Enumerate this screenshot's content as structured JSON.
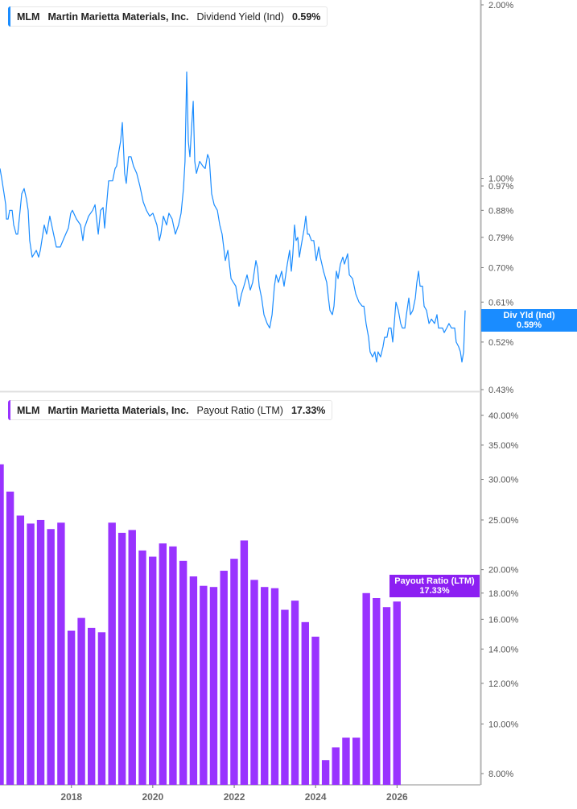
{
  "colors": {
    "yield": "#1a8cff",
    "payout": "#9933ff",
    "payout_badge": "#8c1ff2",
    "axis": "#b3b3b3",
    "tick_text": "#555555"
  },
  "top_legend": {
    "ticker": "MLM",
    "company": "Martin Marietta Materials, Inc.",
    "metric": "Dividend Yield (Ind)",
    "value": "0.59%"
  },
  "top_badge": {
    "label": "Div Yld (Ind)",
    "value": "0.59%"
  },
  "bottom_legend": {
    "ticker": "MLM",
    "company": "Martin Marietta Materials, Inc.",
    "metric": "Payout Ratio (LTM)",
    "value": "17.33%"
  },
  "bottom_badge": {
    "label": "Payout Ratio (LTM)",
    "value": "17.33%"
  },
  "chart_data": [
    {
      "type": "line",
      "series_name": "Dividend Yield (Ind)",
      "y_scale": "log",
      "ylim": [
        0.43,
        2.0
      ],
      "y_unit": "%",
      "y_ticks": [
        "2.00%",
        "1.00%",
        "0.97%",
        "0.88%",
        "0.79%",
        "0.70%",
        "0.61%",
        "0.52%",
        "0.43%"
      ],
      "y_tick_values": [
        2.0,
        1.0,
        0.97,
        0.88,
        0.79,
        0.7,
        0.61,
        0.52,
        0.43
      ],
      "points": [
        [
          "2016-04-02",
          1.04
        ],
        [
          "2016-04-15",
          1.0
        ],
        [
          "2016-05-04",
          0.94
        ],
        [
          "2016-05-16",
          0.9
        ],
        [
          "2016-05-22",
          0.85
        ],
        [
          "2016-06-04",
          0.85
        ],
        [
          "2016-06-16",
          0.88
        ],
        [
          "2016-07-05",
          0.88
        ],
        [
          "2016-07-17",
          0.83
        ],
        [
          "2016-08-05",
          0.8
        ],
        [
          "2016-08-17",
          0.8
        ],
        [
          "2016-09-05",
          0.88
        ],
        [
          "2016-09-17",
          0.94
        ],
        [
          "2016-10-06",
          0.96
        ],
        [
          "2016-10-24",
          0.92
        ],
        [
          "2016-11-06",
          0.88
        ],
        [
          "2016-11-18",
          0.78
        ],
        [
          "2016-12-07",
          0.73
        ],
        [
          "2017-01-08",
          0.75
        ],
        [
          "2017-01-26",
          0.73
        ],
        [
          "2017-02-08",
          0.75
        ],
        [
          "2017-03-11",
          0.83
        ],
        [
          "2017-03-29",
          0.8
        ],
        [
          "2017-04-23",
          0.86
        ],
        [
          "2017-05-12",
          0.82
        ],
        [
          "2017-06-12",
          0.76
        ],
        [
          "2017-07-13",
          0.76
        ],
        [
          "2017-08-13",
          0.79
        ],
        [
          "2017-09-14",
          0.82
        ],
        [
          "2017-10-02",
          0.87
        ],
        [
          "2017-10-15",
          0.88
        ],
        [
          "2017-11-15",
          0.85
        ],
        [
          "2017-12-17",
          0.83
        ],
        [
          "2018-01-04",
          0.78
        ],
        [
          "2018-01-16",
          0.82
        ],
        [
          "2018-02-17",
          0.86
        ],
        [
          "2018-03-20",
          0.88
        ],
        [
          "2018-04-08",
          0.9
        ],
        [
          "2018-05-03",
          0.8
        ],
        [
          "2018-05-21",
          0.88
        ],
        [
          "2018-06-09",
          0.89
        ],
        [
          "2018-06-21",
          0.82
        ],
        [
          "2018-07-22",
          0.99
        ],
        [
          "2018-08-22",
          0.99
        ],
        [
          "2018-09-10",
          1.04
        ],
        [
          "2018-09-22",
          1.05
        ],
        [
          "2018-10-11",
          1.12
        ],
        [
          "2018-10-23",
          1.16
        ],
        [
          "2018-11-05",
          1.25
        ],
        [
          "2018-11-23",
          1.02
        ],
        [
          "2018-12-06",
          0.98
        ],
        [
          "2018-12-24",
          1.09
        ],
        [
          "2019-01-12",
          1.09
        ],
        [
          "2019-01-31",
          1.05
        ],
        [
          "2019-02-25",
          1.02
        ],
        [
          "2019-03-21",
          0.97
        ],
        [
          "2019-04-16",
          0.91
        ],
        [
          "2019-05-11",
          0.88
        ],
        [
          "2019-06-05",
          0.86
        ],
        [
          "2019-06-30",
          0.87
        ],
        [
          "2019-07-31",
          0.83
        ],
        [
          "2019-08-19",
          0.78
        ],
        [
          "2019-08-31",
          0.8
        ],
        [
          "2019-09-19",
          0.86
        ],
        [
          "2019-10-14",
          0.83
        ],
        [
          "2019-11-01",
          0.87
        ],
        [
          "2019-11-26",
          0.85
        ],
        [
          "2019-12-21",
          0.8
        ],
        [
          "2020-01-15",
          0.83
        ],
        [
          "2020-02-03",
          0.87
        ],
        [
          "2020-02-22",
          0.96
        ],
        [
          "2020-03-05",
          1.07
        ],
        [
          "2020-03-18",
          1.53
        ],
        [
          "2020-03-30",
          1.16
        ],
        [
          "2020-04-12",
          1.09
        ],
        [
          "2020-04-24",
          1.22
        ],
        [
          "2020-05-07",
          1.36
        ],
        [
          "2020-05-19",
          1.07
        ],
        [
          "2020-06-01",
          1.02
        ],
        [
          "2020-06-26",
          1.07
        ],
        [
          "2020-07-21",
          1.05
        ],
        [
          "2020-08-08",
          1.04
        ],
        [
          "2020-08-27",
          1.1
        ],
        [
          "2020-09-09",
          1.08
        ],
        [
          "2020-09-27",
          0.94
        ],
        [
          "2020-10-16",
          0.9
        ],
        [
          "2020-11-10",
          0.88
        ],
        [
          "2020-11-29",
          0.83
        ],
        [
          "2020-12-17",
          0.8
        ],
        [
          "2021-01-11",
          0.72
        ],
        [
          "2021-01-30",
          0.75
        ],
        [
          "2021-02-24",
          0.67
        ],
        [
          "2021-03-14",
          0.66
        ],
        [
          "2021-04-02",
          0.65
        ],
        [
          "2021-04-27",
          0.6
        ],
        [
          "2021-05-16",
          0.63
        ],
        [
          "2021-06-04",
          0.65
        ],
        [
          "2021-06-28",
          0.68
        ],
        [
          "2021-07-23",
          0.64
        ],
        [
          "2021-08-11",
          0.66
        ],
        [
          "2021-09-05",
          0.72
        ],
        [
          "2021-09-17",
          0.7
        ],
        [
          "2021-09-30",
          0.65
        ],
        [
          "2021-10-19",
          0.62
        ],
        [
          "2021-11-06",
          0.58
        ],
        [
          "2021-12-01",
          0.56
        ],
        [
          "2021-12-20",
          0.55
        ],
        [
          "2022-01-08",
          0.58
        ],
        [
          "2022-01-26",
          0.65
        ],
        [
          "2022-02-08",
          0.68
        ],
        [
          "2022-02-26",
          0.66
        ],
        [
          "2022-03-23",
          0.69
        ],
        [
          "2022-04-11",
          0.65
        ],
        [
          "2022-05-06",
          0.71
        ],
        [
          "2022-05-24",
          0.75
        ],
        [
          "2022-06-06",
          0.69
        ],
        [
          "2022-06-18",
          0.74
        ],
        [
          "2022-07-01",
          0.83
        ],
        [
          "2022-07-13",
          0.78
        ],
        [
          "2022-07-26",
          0.79
        ],
        [
          "2022-08-07",
          0.73
        ],
        [
          "2022-08-20",
          0.76
        ],
        [
          "2022-09-14",
          0.82
        ],
        [
          "2022-09-26",
          0.86
        ],
        [
          "2022-10-09",
          0.8
        ],
        [
          "2022-10-21",
          0.8
        ],
        [
          "2022-11-09",
          0.78
        ],
        [
          "2022-11-27",
          0.78
        ],
        [
          "2022-12-16",
          0.72
        ],
        [
          "2023-01-04",
          0.76
        ],
        [
          "2023-01-16",
          0.73
        ],
        [
          "2023-02-10",
          0.69
        ],
        [
          "2023-03-07",
          0.66
        ],
        [
          "2023-03-20",
          0.62
        ],
        [
          "2023-04-01",
          0.59
        ],
        [
          "2023-04-20",
          0.58
        ],
        [
          "2023-05-02",
          0.6
        ],
        [
          "2023-05-21",
          0.69
        ],
        [
          "2023-06-03",
          0.67
        ],
        [
          "2023-06-21",
          0.71
        ],
        [
          "2023-07-10",
          0.73
        ],
        [
          "2023-07-22",
          0.71
        ],
        [
          "2023-08-16",
          0.74
        ],
        [
          "2023-08-29",
          0.68
        ],
        [
          "2023-09-23",
          0.67
        ],
        [
          "2023-10-18",
          0.63
        ],
        [
          "2023-11-12",
          0.61
        ],
        [
          "2023-12-07",
          0.6
        ],
        [
          "2023-12-20",
          0.6
        ],
        [
          "2024-01-06",
          0.56
        ],
        [
          "2024-01-25",
          0.53
        ],
        [
          "2024-02-06",
          0.5
        ],
        [
          "2024-02-25",
          0.49
        ],
        [
          "2024-03-14",
          0.5
        ],
        [
          "2024-03-27",
          0.48
        ],
        [
          "2024-04-08",
          0.5
        ],
        [
          "2024-04-27",
          0.49
        ],
        [
          "2024-05-16",
          0.51
        ],
        [
          "2024-05-28",
          0.53
        ],
        [
          "2024-06-16",
          0.53
        ],
        [
          "2024-06-29",
          0.55
        ],
        [
          "2024-07-17",
          0.55
        ],
        [
          "2024-07-30",
          0.52
        ],
        [
          "2024-08-11",
          0.56
        ],
        [
          "2024-08-24",
          0.61
        ],
        [
          "2024-09-12",
          0.59
        ],
        [
          "2024-09-30",
          0.56
        ],
        [
          "2024-10-13",
          0.55
        ],
        [
          "2024-11-01",
          0.55
        ],
        [
          "2024-11-13",
          0.58
        ],
        [
          "2024-12-02",
          0.62
        ],
        [
          "2024-12-14",
          0.58
        ],
        [
          "2025-01-02",
          0.59
        ],
        [
          "2025-01-21",
          0.62
        ],
        [
          "2025-02-02",
          0.66
        ],
        [
          "2025-02-15",
          0.69
        ],
        [
          "2025-02-27",
          0.65
        ],
        [
          "2025-03-18",
          0.65
        ],
        [
          "2025-03-30",
          0.6
        ],
        [
          "2025-04-18",
          0.59
        ],
        [
          "2025-05-07",
          0.56
        ],
        [
          "2025-05-26",
          0.57
        ],
        [
          "2025-06-19",
          0.56
        ],
        [
          "2025-07-08",
          0.58
        ],
        [
          "2025-07-20",
          0.55
        ],
        [
          "2025-08-08",
          0.55
        ],
        [
          "2025-08-20",
          0.55
        ],
        [
          "2025-09-02",
          0.54
        ],
        [
          "2025-09-21",
          0.55
        ],
        [
          "2025-10-09",
          0.56
        ],
        [
          "2025-10-28",
          0.55
        ],
        [
          "2025-11-22",
          0.55
        ],
        [
          "2025-12-04",
          0.52
        ],
        [
          "2025-12-23",
          0.51
        ],
        [
          "2026-01-05",
          0.5
        ],
        [
          "2026-01-17",
          0.48
        ],
        [
          "2026-01-30",
          0.5
        ],
        [
          "2026-02-11",
          0.59
        ]
      ]
    },
    {
      "type": "bar",
      "series_name": "Payout Ratio (LTM)",
      "y_scale": "log",
      "ylim": [
        8.0,
        40.0
      ],
      "y_unit": "%",
      "y_ticks": [
        "40.00%",
        "35.00%",
        "30.00%",
        "25.00%",
        "20.00%",
        "18.00%",
        "16.00%",
        "14.00%",
        "12.00%",
        "10.00%",
        "8.00%"
      ],
      "y_tick_values": [
        40,
        35,
        30,
        25,
        20,
        18,
        16,
        14,
        12,
        10,
        8
      ],
      "x_ticks": [
        "2018",
        "2020",
        "2022",
        "2024",
        "2026"
      ],
      "x_range": [
        "2016-03-31",
        "2026-06-30"
      ],
      "dates": [
        "2016-03-31",
        "2016-06-30",
        "2016-09-30",
        "2016-12-31",
        "2017-03-31",
        "2017-06-30",
        "2017-09-30",
        "2017-12-31",
        "2018-03-31",
        "2018-06-30",
        "2018-09-30",
        "2018-12-31",
        "2019-03-31",
        "2019-06-30",
        "2019-09-30",
        "2019-12-31",
        "2020-03-31",
        "2020-06-30",
        "2020-09-30",
        "2020-12-31",
        "2021-03-31",
        "2021-06-30",
        "2021-09-30",
        "2021-12-31",
        "2022-03-31",
        "2022-06-30",
        "2022-09-30",
        "2022-12-31",
        "2023-03-31",
        "2023-06-30",
        "2023-09-30",
        "2023-12-31",
        "2024-03-31",
        "2024-06-30",
        "2024-09-30",
        "2024-12-31",
        "2025-03-31",
        "2025-06-30",
        "2025-09-30",
        "2025-12-31"
      ],
      "values": [
        32.1,
        28.4,
        25.5,
        24.6,
        25.0,
        24.0,
        24.7,
        15.2,
        16.1,
        15.4,
        15.1,
        24.7,
        23.6,
        23.9,
        21.8,
        21.2,
        22.5,
        22.2,
        20.8,
        19.4,
        18.6,
        18.5,
        19.9,
        21.0,
        22.8,
        19.1,
        18.5,
        18.4,
        16.7,
        17.4,
        15.8,
        14.8,
        8.5,
        9.0,
        9.4,
        9.4,
        18.0,
        17.6,
        16.9,
        17.33
      ]
    }
  ]
}
